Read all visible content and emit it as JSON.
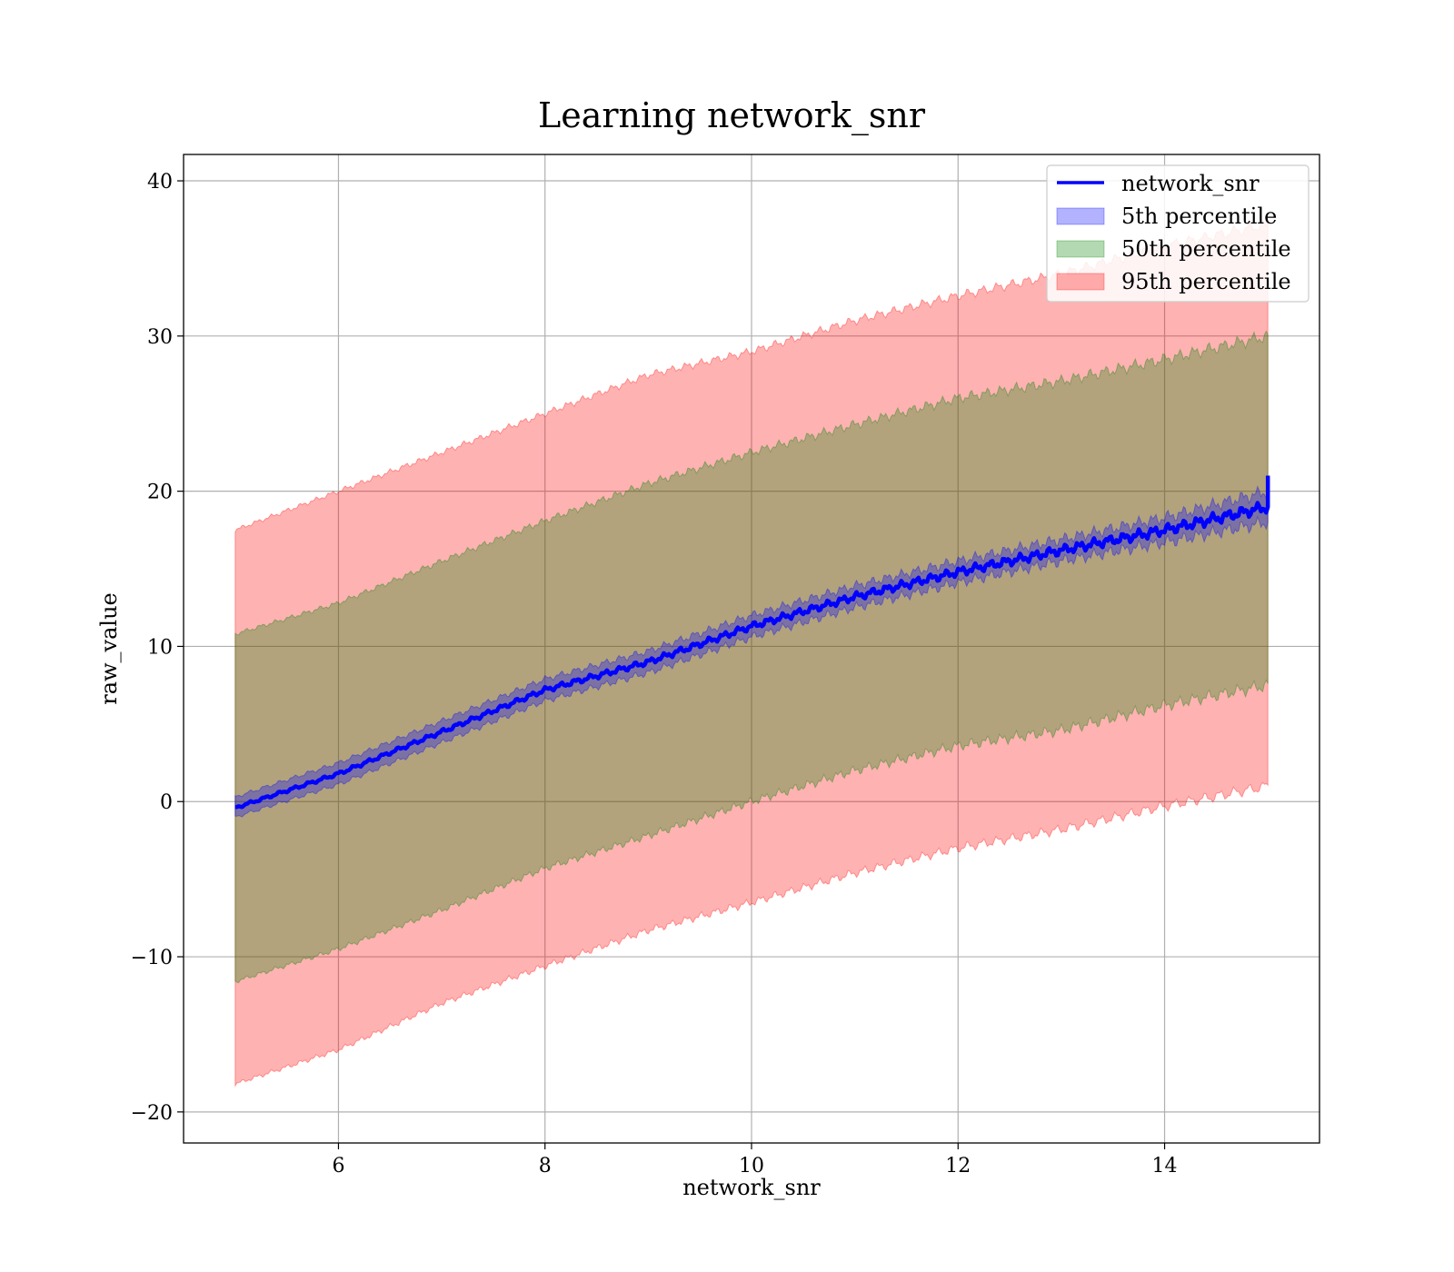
{
  "chart_data": {
    "type": "line",
    "title": "Learning network_snr",
    "xlabel": "network_snr",
    "ylabel": "raw_value",
    "xlim": [
      4.5,
      15.5
    ],
    "ylim": [
      -22,
      41.7
    ],
    "xticks": [
      6,
      8,
      10,
      12,
      14
    ],
    "xtick_labels": [
      "6",
      "8",
      "10",
      "12",
      "14"
    ],
    "yticks": [
      -20,
      -10,
      0,
      10,
      20,
      30,
      40
    ],
    "ytick_labels": [
      "−20",
      "−10",
      "0",
      "10",
      "20",
      "30",
      "40"
    ],
    "grid": true,
    "legend_position": "top-right",
    "x": [
      5,
      6,
      7,
      8,
      9,
      10,
      11,
      12,
      13,
      14,
      15
    ],
    "series": [
      {
        "name": "network_snr",
        "kind": "line",
        "color": "#0000ff",
        "values": [
          -0.4,
          1.8,
          4.5,
          7.2,
          9.0,
          11.3,
          13.2,
          14.8,
          16.2,
          17.5,
          19.0
        ]
      },
      {
        "name": "5th percentile",
        "kind": "band",
        "color": "#0000ff",
        "lower": [
          -1.0,
          1.1,
          3.8,
          6.5,
          8.3,
          10.6,
          12.5,
          14.1,
          15.5,
          16.7,
          18.0
        ],
        "upper": [
          0.3,
          2.5,
          5.2,
          7.9,
          9.7,
          12.0,
          13.9,
          15.5,
          16.9,
          18.3,
          20.0
        ]
      },
      {
        "name": "50th percentile",
        "kind": "band",
        "color": "#008000",
        "lower": [
          -11.6,
          -9.5,
          -7.0,
          -4.3,
          -2.2,
          0.0,
          2.0,
          3.6,
          4.6,
          6.2,
          7.5
        ],
        "upper": [
          10.8,
          12.8,
          15.5,
          18.1,
          20.5,
          22.5,
          24.3,
          26.0,
          27.1,
          28.5,
          30.0
        ]
      },
      {
        "name": "95th percentile",
        "kind": "band",
        "color": "#ff0000",
        "lower": [
          -18.2,
          -16.0,
          -13.0,
          -10.6,
          -8.3,
          -6.5,
          -4.6,
          -3.0,
          -1.8,
          -0.3,
          1.0
        ],
        "upper": [
          17.5,
          20.0,
          22.5,
          25.0,
          27.5,
          29.0,
          31.0,
          32.6,
          34.0,
          35.8,
          37.2
        ]
      }
    ]
  }
}
